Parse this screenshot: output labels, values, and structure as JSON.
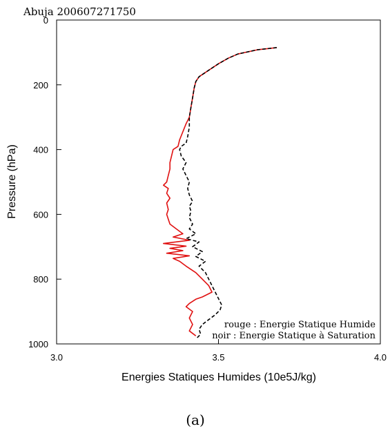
{
  "chart_data": {
    "type": "line",
    "title": "Abuja 200607271750",
    "xlabel": "Energies Statiques Humides (10e5J/kg)",
    "ylabel": "Pressure (hPa)",
    "xlim": [
      3.0,
      4.0
    ],
    "ylim": [
      1000,
      0
    ],
    "y_inverted": true,
    "grid": false,
    "x_ticks": [
      "3.0",
      "3.5",
      "4.0"
    ],
    "y_ticks": [
      "0",
      "200",
      "400",
      "600",
      "800",
      "1000"
    ],
    "legend_position": "bottom-right",
    "legend": [
      {
        "text": "rouge : Energie Statique Humide"
      },
      {
        "text": "noir : Energie Statique à Saturation"
      }
    ],
    "series": [
      {
        "color": "#e01010",
        "style": "solid",
        "points": [
          [
            3.68,
            85
          ],
          [
            3.62,
            92
          ],
          [
            3.56,
            105
          ],
          [
            3.53,
            118
          ],
          [
            3.5,
            135
          ],
          [
            3.47,
            155
          ],
          [
            3.44,
            175
          ],
          [
            3.43,
            190
          ],
          [
            3.425,
            210
          ],
          [
            3.42,
            240
          ],
          [
            3.415,
            270
          ],
          [
            3.41,
            300
          ],
          [
            3.4,
            320
          ],
          [
            3.39,
            345
          ],
          [
            3.38,
            370
          ],
          [
            3.375,
            390
          ],
          [
            3.36,
            400
          ],
          [
            3.355,
            420
          ],
          [
            3.35,
            440
          ],
          [
            3.35,
            460
          ],
          [
            3.345,
            480
          ],
          [
            3.34,
            500
          ],
          [
            3.33,
            510
          ],
          [
            3.345,
            520
          ],
          [
            3.34,
            535
          ],
          [
            3.35,
            550
          ],
          [
            3.34,
            565
          ],
          [
            3.345,
            585
          ],
          [
            3.34,
            600
          ],
          [
            3.345,
            615
          ],
          [
            3.35,
            630
          ],
          [
            3.37,
            645
          ],
          [
            3.39,
            660
          ],
          [
            3.36,
            670
          ],
          [
            3.41,
            680
          ],
          [
            3.33,
            690
          ],
          [
            3.4,
            698
          ],
          [
            3.35,
            705
          ],
          [
            3.39,
            712
          ],
          [
            3.34,
            720
          ],
          [
            3.41,
            728
          ],
          [
            3.36,
            736
          ],
          [
            3.38,
            745
          ],
          [
            3.4,
            760
          ],
          [
            3.43,
            780
          ],
          [
            3.45,
            800
          ],
          [
            3.47,
            820
          ],
          [
            3.48,
            840
          ],
          [
            3.45,
            855
          ],
          [
            3.43,
            862
          ],
          [
            3.41,
            875
          ],
          [
            3.4,
            885
          ],
          [
            3.42,
            900
          ],
          [
            3.41,
            920
          ],
          [
            3.42,
            940
          ],
          [
            3.41,
            960
          ],
          [
            3.43,
            975
          ]
        ]
      },
      {
        "color": "#000000",
        "style": "dashed",
        "points": [
          [
            3.68,
            85
          ],
          [
            3.62,
            92
          ],
          [
            3.56,
            105
          ],
          [
            3.53,
            118
          ],
          [
            3.5,
            135
          ],
          [
            3.47,
            155
          ],
          [
            3.44,
            175
          ],
          [
            3.43,
            190
          ],
          [
            3.425,
            210
          ],
          [
            3.42,
            240
          ],
          [
            3.415,
            270
          ],
          [
            3.41,
            300
          ],
          [
            3.41,
            330
          ],
          [
            3.405,
            360
          ],
          [
            3.4,
            380
          ],
          [
            3.385,
            390
          ],
          [
            3.38,
            400
          ],
          [
            3.385,
            420
          ],
          [
            3.4,
            440
          ],
          [
            3.39,
            460
          ],
          [
            3.4,
            480
          ],
          [
            3.41,
            500
          ],
          [
            3.405,
            520
          ],
          [
            3.41,
            540
          ],
          [
            3.42,
            560
          ],
          [
            3.41,
            575
          ],
          [
            3.415,
            590
          ],
          [
            3.41,
            610
          ],
          [
            3.42,
            630
          ],
          [
            3.41,
            645
          ],
          [
            3.43,
            660
          ],
          [
            3.4,
            675
          ],
          [
            3.44,
            685
          ],
          [
            3.42,
            700
          ],
          [
            3.45,
            715
          ],
          [
            3.43,
            730
          ],
          [
            3.46,
            745
          ],
          [
            3.44,
            760
          ],
          [
            3.46,
            780
          ],
          [
            3.47,
            800
          ],
          [
            3.48,
            820
          ],
          [
            3.49,
            840
          ],
          [
            3.5,
            860
          ],
          [
            3.51,
            880
          ],
          [
            3.505,
            895
          ],
          [
            3.49,
            910
          ],
          [
            3.47,
            925
          ],
          [
            3.45,
            940
          ],
          [
            3.44,
            955
          ],
          [
            3.445,
            970
          ],
          [
            3.43,
            985
          ]
        ]
      }
    ]
  },
  "figure": {
    "caption": "(a)"
  }
}
